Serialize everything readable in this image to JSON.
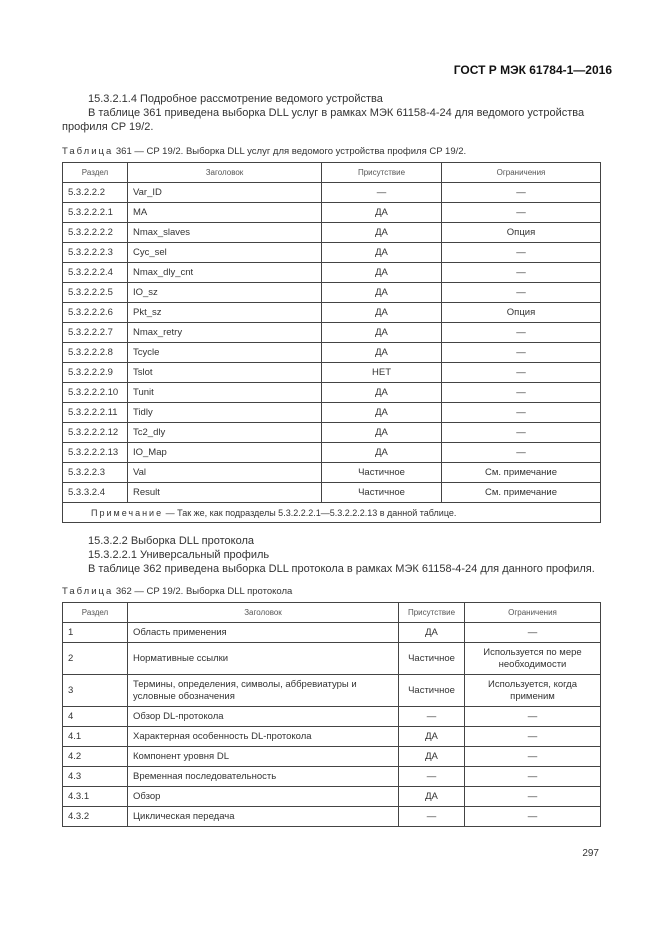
{
  "header": "ГОСТ Р МЭК 61784-1—2016",
  "section1": {
    "heading": "15.3.2.1.4 Подробное рассмотрение ведомого устройства",
    "para_line1": "В таблице 361 приведена выборка DLL услуг в рамках МЭК 61158-4-24 для ведомого устройства",
    "para_line2": "профиля CP 19/2."
  },
  "table361": {
    "caption_prefix": "Таблица",
    "caption": " 361 — CP 19/2. Выборка DLL услуг для ведомого устройства профиля CP 19/2.",
    "headers": [
      "Раздел",
      "Заголовок",
      "Присутствие",
      "Ограничения"
    ],
    "rows": [
      [
        "5.3.2.2.2",
        "Var_ID",
        "—",
        "—"
      ],
      [
        "5.3.2.2.2.1",
        "MA",
        "ДА",
        "—"
      ],
      [
        "5.3.2.2.2.2",
        "Nmax_slaves",
        "ДА",
        "Опция"
      ],
      [
        "5.3.2.2.2.3",
        "Cyc_sel",
        "ДА",
        "—"
      ],
      [
        "5.3.2.2.2.4",
        "Nmax_dly_cnt",
        "ДА",
        "—"
      ],
      [
        "5.3.2.2.2.5",
        "IO_sz",
        "ДА",
        "—"
      ],
      [
        "5.3.2.2.2.6",
        "Pkt_sz",
        "ДА",
        "Опция"
      ],
      [
        "5.3.2.2.2.7",
        "Nmax_retry",
        "ДА",
        "—"
      ],
      [
        "5.3.2.2.2.8",
        "Tcycle",
        "ДА",
        "—"
      ],
      [
        "5.3.2.2.2.9",
        "Tslot",
        "НЕТ",
        "—"
      ],
      [
        "5.3.2.2.2.10",
        "Tunit",
        "ДА",
        "—"
      ],
      [
        "5.3.2.2.2.11",
        "Tidly",
        "ДА",
        "—"
      ],
      [
        "5.3.2.2.2.12",
        "Tc2_dly",
        "ДА",
        "—"
      ],
      [
        "5.3.2.2.2.13",
        "IO_Map",
        "ДА",
        "—"
      ],
      [
        "5.3.2.2.3",
        "Val",
        "Частичное",
        "См. примечание"
      ],
      [
        "5.3.3.2.4",
        "Result",
        "Частичное",
        "См. примечание"
      ]
    ],
    "note_prefix": "Примечание",
    "note": " — Так же, как подразделы 5.3.2.2.2.1—5.3.2.2.2.13 в данной таблице."
  },
  "section2": {
    "heading": "15.3.2.2  Выборка DLL протокола",
    "subheading": "15.3.2.2.1 Универсальный профиль",
    "para": "В таблице 362 приведена выборка DLL протокола в рамках МЭК 61158-4-24 для данного профиля."
  },
  "table362": {
    "caption_prefix": "Таблица",
    "caption": " 362 — CP 19/2. Выборка DLL протокола",
    "headers": [
      "Раздел",
      "Заголовок",
      "Присутствие",
      "Ограничения"
    ],
    "rows": [
      [
        "1",
        "Область применения",
        "ДА",
        "—"
      ],
      [
        "2",
        "Нормативные ссылки",
        "Частичное",
        "Используется по мере необходимости"
      ],
      [
        "3",
        "Термины, определения, символы, аббревиатуры и условные обозначения",
        "Частичное",
        "Используется, когда применим"
      ],
      [
        "4",
        "Обзор DL-протокола",
        "—",
        "—"
      ],
      [
        "4.1",
        "Характерная особенность DL-протокола",
        "ДА",
        "—"
      ],
      [
        "4.2",
        "Компонент уровня DL",
        "ДА",
        "—"
      ],
      [
        "4.3",
        "Временная последовательность",
        "—",
        "—"
      ],
      [
        "4.3.1",
        "Обзор",
        "ДА",
        "—"
      ],
      [
        "4.3.2",
        "Циклическая передача",
        "—",
        "—"
      ]
    ]
  },
  "page_number": "297"
}
